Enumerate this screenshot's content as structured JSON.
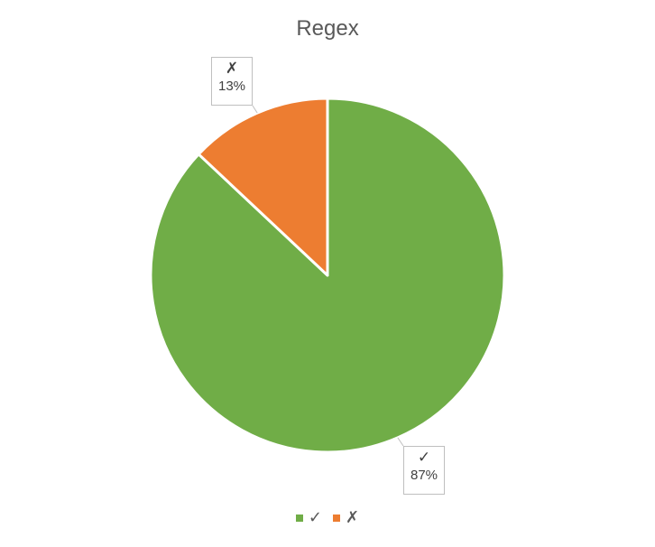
{
  "chart_data": {
    "type": "pie",
    "title": "Regex",
    "categories": [
      "✓",
      "✗"
    ],
    "values": [
      87,
      13
    ],
    "value_labels": [
      "87%",
      "13%"
    ],
    "colors": [
      "#70AD47",
      "#ED7D31"
    ],
    "start_angle_deg": 0,
    "direction": "clockwise",
    "legend": "bottom",
    "data_labels": "callout"
  }
}
